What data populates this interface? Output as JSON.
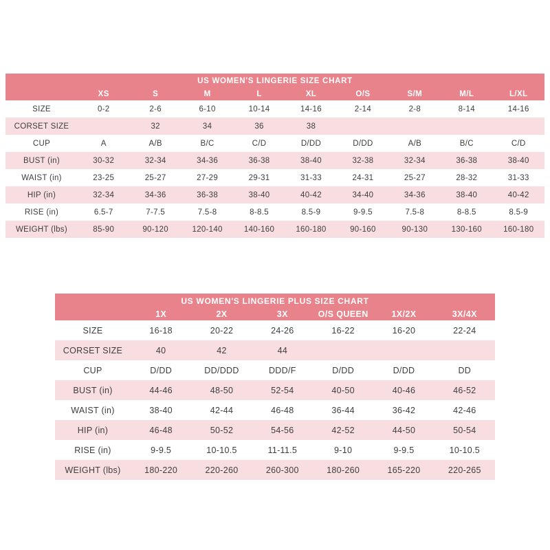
{
  "chart_data": [
    {
      "type": "table",
      "title": "US WOMEN'S LINGERIE SIZE CHART",
      "columns": [
        "",
        "XS",
        "S",
        "M",
        "L",
        "XL",
        "O/S",
        "S/M",
        "M/L",
        "L/XL"
      ],
      "rows": [
        {
          "label": "SIZE",
          "values": [
            "0-2",
            "2-6",
            "6-10",
            "10-14",
            "14-16",
            "2-14",
            "2-8",
            "8-14",
            "14-16"
          ]
        },
        {
          "label": "CORSET SIZE",
          "values": [
            "",
            "32",
            "34",
            "36",
            "38",
            "",
            "",
            "",
            ""
          ]
        },
        {
          "label": "CUP",
          "values": [
            "A",
            "A/B",
            "B/C",
            "C/D",
            "D/DD",
            "D/DD",
            "A/B",
            "B/C",
            "C/D"
          ]
        },
        {
          "label": "BUST (in)",
          "values": [
            "30-32",
            "32-34",
            "34-36",
            "36-38",
            "38-40",
            "32-38",
            "32-34",
            "36-38",
            "38-40"
          ]
        },
        {
          "label": "WAIST (in)",
          "values": [
            "23-25",
            "25-27",
            "27-29",
            "29-31",
            "31-33",
            "24-31",
            "25-27",
            "28-32",
            "31-33"
          ]
        },
        {
          "label": "HIP (in)",
          "values": [
            "32-34",
            "34-36",
            "36-38",
            "38-40",
            "40-42",
            "34-40",
            "34-36",
            "38-40",
            "40-42"
          ]
        },
        {
          "label": "RISE (in)",
          "values": [
            "6.5-7",
            "7-7.5",
            "7.5-8",
            "8-8.5",
            "8.5-9",
            "9-9.5",
            "7.5-8",
            "8-8.5",
            "8.5-9"
          ]
        },
        {
          "label": "WEIGHT (lbs)",
          "values": [
            "85-90",
            "90-120",
            "120-140",
            "140-160",
            "160-180",
            "90-160",
            "90-130",
            "130-160",
            "160-180"
          ]
        }
      ]
    },
    {
      "type": "table",
      "title": "US WOMEN'S LINGERIE PLUS SIZE CHART",
      "columns": [
        "",
        "1X",
        "2X",
        "3X",
        "O/S QUEEN",
        "1X/2X",
        "3X/4X"
      ],
      "rows": [
        {
          "label": "SIZE",
          "values": [
            "16-18",
            "20-22",
            "24-26",
            "16-22",
            "16-20",
            "22-24"
          ]
        },
        {
          "label": "CORSET SIZE",
          "values": [
            "40",
            "42",
            "44",
            "",
            "",
            ""
          ]
        },
        {
          "label": "CUP",
          "values": [
            "D/DD",
            "DD/DDD",
            "DDD/F",
            "D/DD",
            "D/DD",
            "DD"
          ]
        },
        {
          "label": "BUST (in)",
          "values": [
            "44-46",
            "48-50",
            "52-54",
            "40-50",
            "40-46",
            "46-52"
          ]
        },
        {
          "label": "WAIST (in)",
          "values": [
            "38-40",
            "42-44",
            "46-48",
            "36-44",
            "36-42",
            "42-46"
          ]
        },
        {
          "label": "HIP (in)",
          "values": [
            "46-48",
            "50-52",
            "54-56",
            "42-52",
            "44-50",
            "50-54"
          ]
        },
        {
          "label": "RISE (in)",
          "values": [
            "9-9.5",
            "10-10.5",
            "11-11.5",
            "9-10",
            "9-9.5",
            "10-10.5"
          ]
        },
        {
          "label": "WEIGHT (lbs)",
          "values": [
            "180-220",
            "220-260",
            "260-300",
            "180-260",
            "165-220",
            "220-265"
          ]
        }
      ]
    }
  ],
  "colors": {
    "header_bg": "#e8838b",
    "row_alt_bg": "#f9dee1",
    "header_text": "#ffffff",
    "text": "#3d3d3f"
  }
}
